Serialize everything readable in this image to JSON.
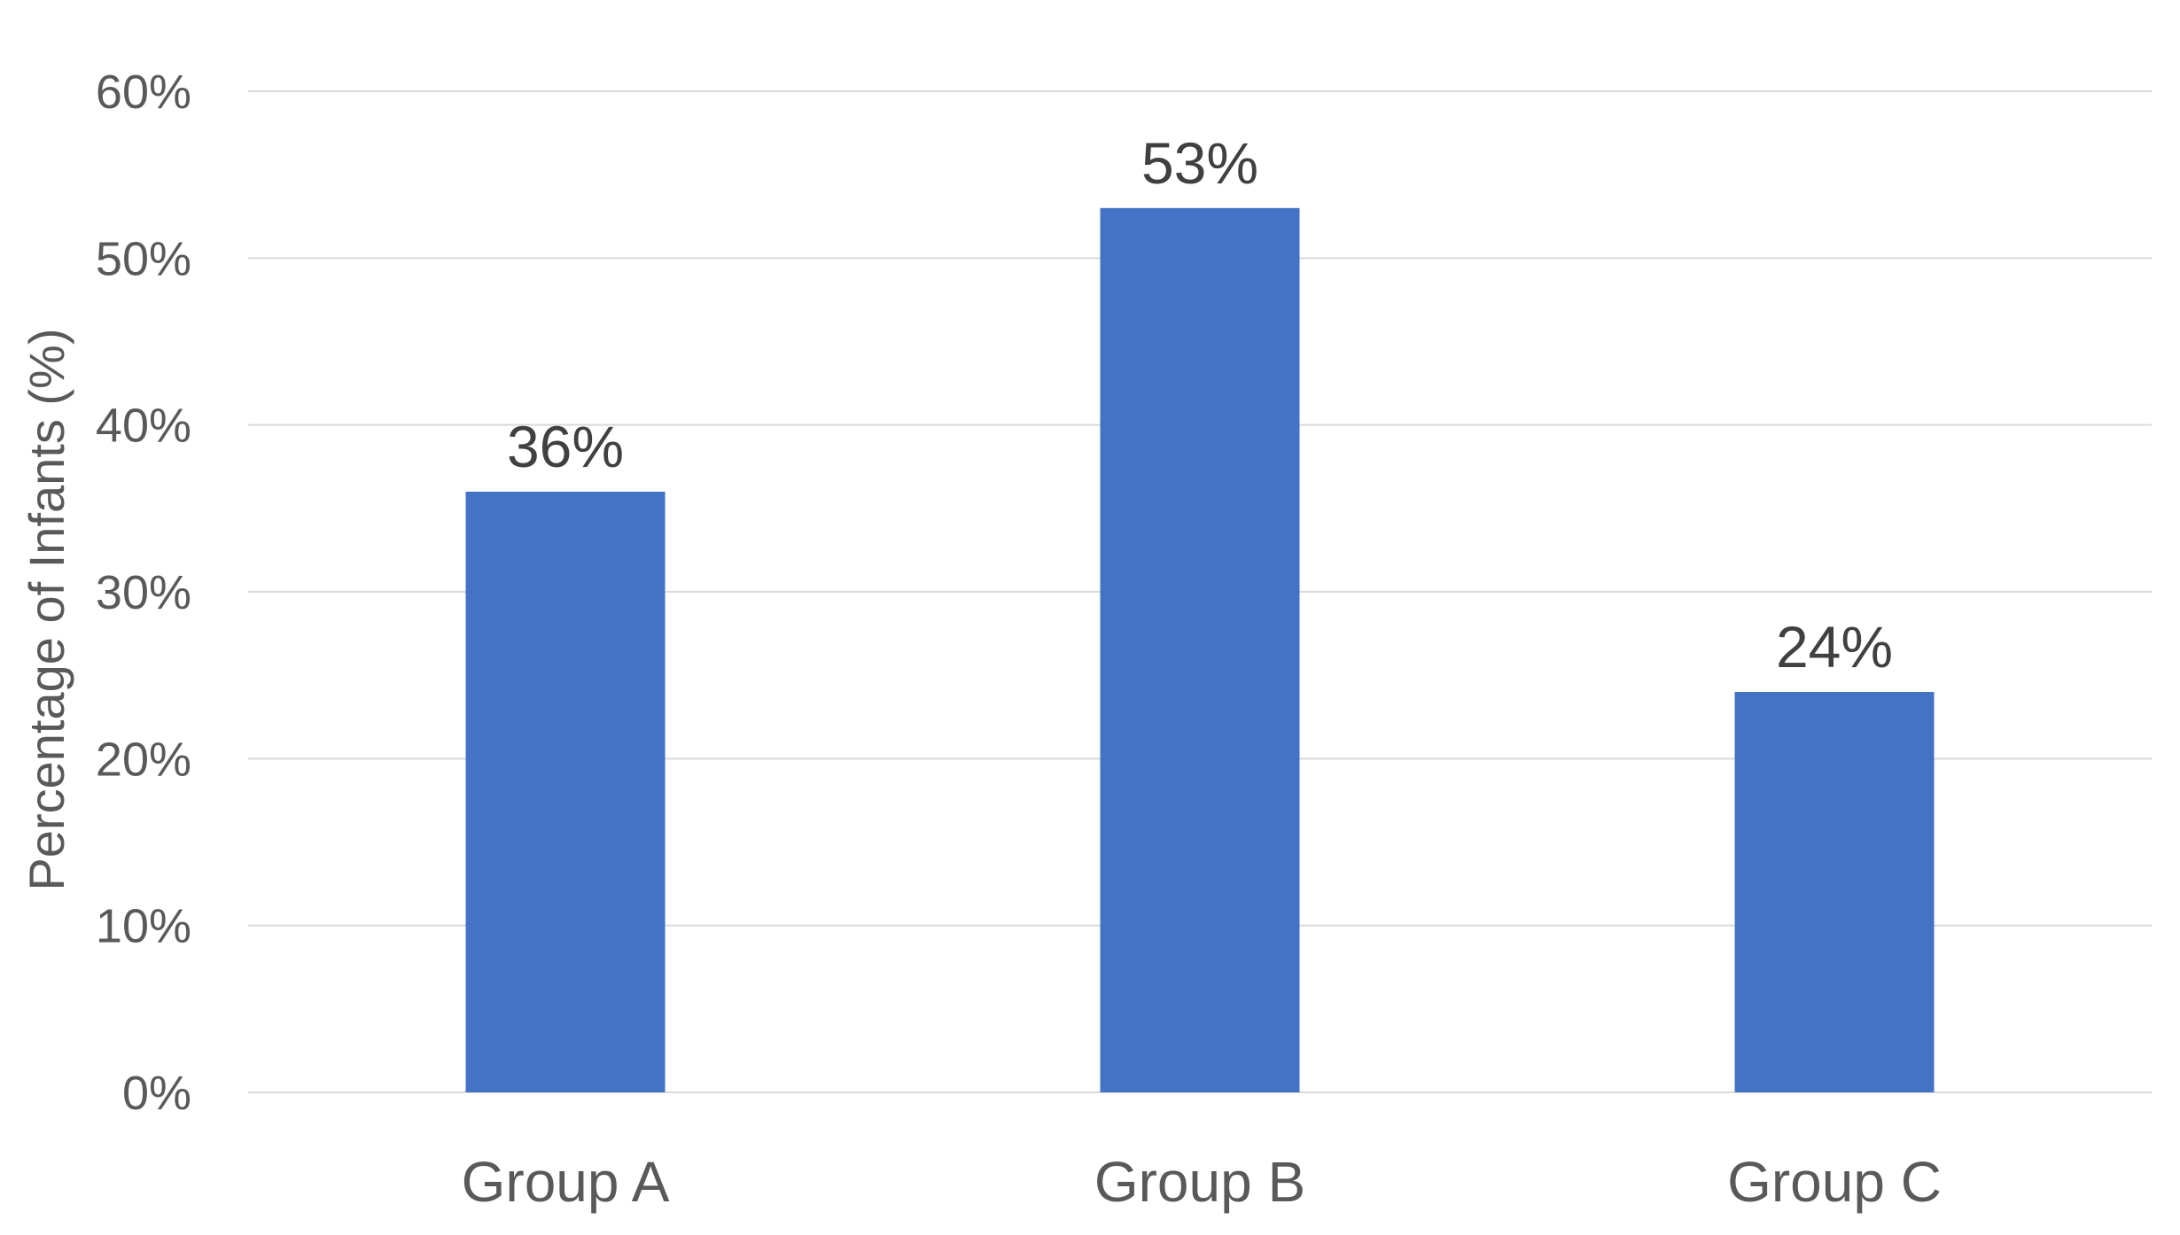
{
  "chart_data": {
    "type": "bar",
    "categories": [
      "Group A",
      "Group B",
      "Group C"
    ],
    "values": [
      36,
      53,
      24
    ],
    "data_labels": [
      "36%",
      "53%",
      "24%"
    ],
    "title": "",
    "xlabel": "",
    "ylabel": "Percentage of Infants (%)",
    "ylim": [
      0,
      60
    ],
    "y_ticks": [
      0,
      10,
      20,
      30,
      40,
      50,
      60
    ],
    "y_tick_labels": [
      "0%",
      "10%",
      "20%",
      "30%",
      "40%",
      "50%",
      "60%"
    ],
    "grid": true,
    "legend": "none",
    "bar_color": "#4472C4"
  }
}
